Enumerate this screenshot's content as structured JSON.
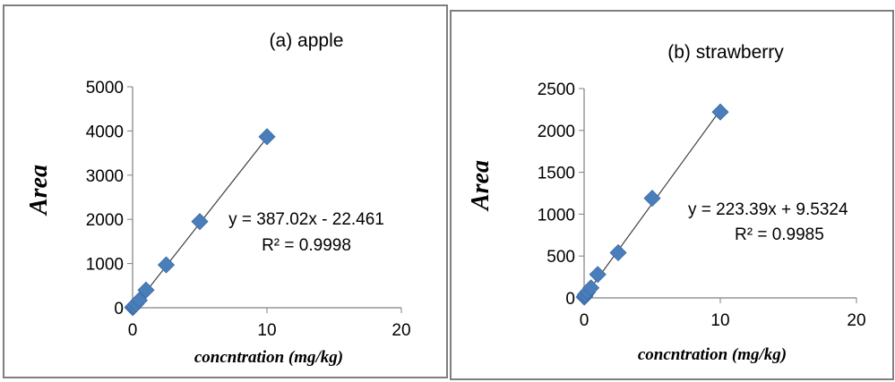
{
  "chart_data": [
    {
      "type": "scatter",
      "title": "(a) apple",
      "xlabel": "concntration (mg/kg)",
      "ylabel": "Area",
      "xlim": [
        0,
        20
      ],
      "ylim": [
        0,
        5000
      ],
      "xticks": [
        "0",
        "10",
        "20"
      ],
      "yticks": [
        "0",
        "1000",
        "2000",
        "3000",
        "4000",
        "5000"
      ],
      "x": [
        0.01,
        0.05,
        0.1,
        0.25,
        0.5,
        1,
        2.5,
        5,
        10
      ],
      "y": [
        5,
        20,
        40,
        85,
        170,
        400,
        970,
        1950,
        3870
      ],
      "trendline": {
        "slope": 387.02,
        "intercept": -22.461
      },
      "equation": "y = 387.02x - 22.461",
      "r2": "R² = 0.9998",
      "marker_color": "#4a7ebb",
      "line_color": "#404040"
    },
    {
      "type": "scatter",
      "title": "(b) strawberry",
      "xlabel": "concntration (mg/kg)",
      "ylabel": "Area",
      "xlim": [
        0,
        20
      ],
      "ylim": [
        0,
        2500
      ],
      "xticks": [
        "0",
        "10",
        "20"
      ],
      "yticks": [
        "0",
        "500",
        "1000",
        "1500",
        "2000",
        "2500"
      ],
      "x": [
        0.01,
        0.05,
        0.1,
        0.25,
        0.5,
        1,
        2.5,
        5,
        10
      ],
      "y": [
        10,
        20,
        40,
        70,
        120,
        280,
        540,
        1190,
        2220
      ],
      "trendline": {
        "slope": 223.39,
        "intercept": 9.5324
      },
      "equation": "y = 223.39x + 9.5324",
      "r2": "R² = 0.9985",
      "marker_color": "#4a7ebb",
      "line_color": "#404040"
    }
  ]
}
